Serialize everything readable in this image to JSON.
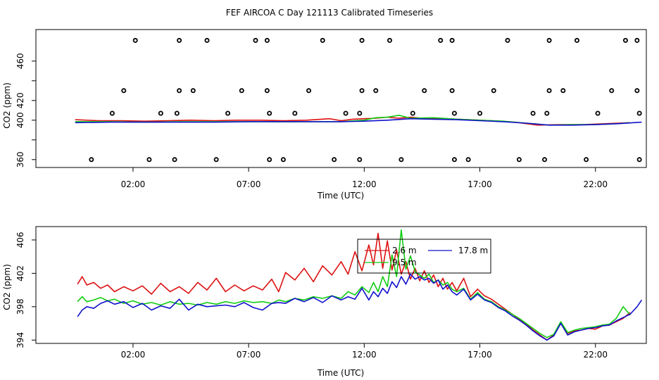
{
  "title": "FEF AIRCOA C  Day 121113  Calibrated Timeseries",
  "colors": {
    "red": "#dd1111",
    "green": "#11cc11",
    "blue": "#1111cc",
    "black": "#000000"
  },
  "chart_data": [
    {
      "id": "top",
      "type": "line",
      "xlabel": "Time (UTC)",
      "ylabel": "CO2 (ppm)",
      "xlim": [
        -2.2,
        24.2
      ],
      "ylim": [
        352,
        492
      ],
      "x_ticks": [
        2,
        7,
        12,
        17,
        22
      ],
      "x_tick_labels": [
        "02:00",
        "07:00",
        "12:00",
        "17:00",
        "22:00"
      ],
      "y_ticks": [
        360,
        380,
        400,
        420,
        440,
        460
      ],
      "y_tick_labels": [
        "360",
        "",
        "400",
        "420",
        "",
        "460"
      ],
      "series": [
        {
          "name": "2.6 m",
          "color": "#dd1111",
          "x": [
            -0.5,
            0.5,
            1.5,
            2.5,
            3.5,
            4.5,
            5.5,
            6.5,
            7.5,
            8.5,
            9.5,
            10.5,
            11.0,
            11.5,
            12.0,
            12.5,
            13.0,
            13.5,
            14.0,
            14.5,
            15.5,
            16.5,
            17.5,
            18.5,
            19.5,
            20.5,
            21.5,
            22.5,
            23.5
          ],
          "y": [
            400.5,
            399.5,
            399.5,
            399.0,
            399.5,
            400.0,
            399.5,
            400.0,
            400.0,
            399.5,
            400.0,
            401.5,
            399.5,
            401.0,
            401.5,
            402.0,
            403.0,
            402.0,
            403.0,
            402.0,
            401.5,
            400.5,
            399.5,
            398.0,
            395.0,
            395.5,
            395.5,
            396.5,
            397.5
          ]
        },
        {
          "name": "9.5 m",
          "color": "#11cc11",
          "x": [
            -0.5,
            1.0,
            2.5,
            4.0,
            5.5,
            7.0,
            8.5,
            10.0,
            11.0,
            12.0,
            12.5,
            13.0,
            13.5,
            14.0,
            15.0,
            16.0,
            17.0,
            18.0,
            19.0,
            20.0,
            21.0,
            22.0,
            23.0,
            23.5
          ],
          "y": [
            398.5,
            398.5,
            398.0,
            398.5,
            398.5,
            398.5,
            398.5,
            398.5,
            398.5,
            400.0,
            402.5,
            403.0,
            405.0,
            402.0,
            402.5,
            401.0,
            400.0,
            399.0,
            397.0,
            395.0,
            395.5,
            395.5,
            396.5,
            397.5
          ]
        },
        {
          "name": "17.8 m",
          "color": "#1111cc",
          "x": [
            -0.5,
            1.0,
            2.5,
            4.0,
            5.5,
            7.0,
            8.5,
            10.0,
            11.0,
            12.0,
            13.0,
            14.0,
            15.0,
            16.0,
            17.0,
            18.0,
            19.0,
            20.0,
            21.0,
            22.0,
            23.0,
            24.0
          ],
          "y": [
            397.5,
            398.0,
            398.0,
            398.0,
            398.0,
            398.5,
            398.5,
            398.5,
            398.5,
            399.0,
            400.0,
            401.5,
            401.0,
            400.5,
            399.5,
            398.5,
            397.0,
            395.0,
            395.0,
            395.5,
            396.5,
            398.0
          ]
        }
      ],
      "markers": {
        "name": "calibration points",
        "color": "#000000",
        "points": [
          [
            0.2,
            360
          ],
          [
            2.7,
            360
          ],
          [
            3.8,
            360
          ],
          [
            5.6,
            360
          ],
          [
            7.9,
            360
          ],
          [
            8.5,
            360
          ],
          [
            10.7,
            360
          ],
          [
            11.8,
            360
          ],
          [
            13.6,
            360
          ],
          [
            15.9,
            360
          ],
          [
            16.5,
            360
          ],
          [
            18.7,
            360
          ],
          [
            19.8,
            360
          ],
          [
            21.6,
            360
          ],
          [
            23.9,
            360
          ],
          [
            1.1,
            407
          ],
          [
            3.2,
            407
          ],
          [
            3.9,
            407
          ],
          [
            6.1,
            407
          ],
          [
            7.9,
            407
          ],
          [
            9.0,
            407
          ],
          [
            11.2,
            407
          ],
          [
            11.8,
            407
          ],
          [
            14.1,
            407
          ],
          [
            15.9,
            407
          ],
          [
            17.0,
            407
          ],
          [
            19.3,
            407
          ],
          [
            19.9,
            407
          ],
          [
            22.1,
            407
          ],
          [
            23.9,
            407
          ],
          [
            1.6,
            430
          ],
          [
            4.0,
            430
          ],
          [
            4.6,
            430
          ],
          [
            6.7,
            430
          ],
          [
            7.8,
            430
          ],
          [
            9.6,
            430
          ],
          [
            11.9,
            430
          ],
          [
            12.5,
            430
          ],
          [
            14.6,
            430
          ],
          [
            15.8,
            430
          ],
          [
            17.6,
            430
          ],
          [
            20.0,
            430
          ],
          [
            20.6,
            430
          ],
          [
            22.7,
            430
          ],
          [
            23.8,
            430
          ],
          [
            2.1,
            481
          ],
          [
            4.0,
            481
          ],
          [
            5.2,
            481
          ],
          [
            7.3,
            481
          ],
          [
            7.8,
            481
          ],
          [
            10.2,
            481
          ],
          [
            11.9,
            481
          ],
          [
            13.1,
            481
          ],
          [
            15.3,
            481
          ],
          [
            15.8,
            481
          ],
          [
            18.2,
            481
          ],
          [
            20.0,
            481
          ],
          [
            21.2,
            481
          ],
          [
            23.3,
            481
          ],
          [
            23.8,
            481
          ]
        ]
      }
    },
    {
      "id": "bottom",
      "type": "line",
      "xlabel": "Time (UTC)",
      "ylabel": "CO2 (ppm)",
      "xlim": [
        -2.2,
        24.2
      ],
      "ylim": [
        393.6,
        407.6
      ],
      "x_ticks": [
        2,
        7,
        12,
        17,
        22
      ],
      "x_tick_labels": [
        "02:00",
        "07:00",
        "12:00",
        "17:00",
        "22:00"
      ],
      "y_ticks": [
        394,
        398,
        402,
        406
      ],
      "y_tick_labels": [
        "394",
        "398",
        "402",
        "406"
      ],
      "series": [
        {
          "name": "2.6 m",
          "color": "#dd1111",
          "x": [
            -0.4,
            -0.2,
            0.0,
            0.3,
            0.6,
            0.9,
            1.2,
            1.6,
            2.0,
            2.4,
            2.8,
            3.2,
            3.6,
            4.0,
            4.4,
            4.8,
            5.2,
            5.6,
            6.0,
            6.4,
            6.8,
            7.2,
            7.6,
            8.0,
            8.3,
            8.6,
            9.0,
            9.4,
            9.8,
            10.2,
            10.6,
            11.0,
            11.3,
            11.6,
            11.9,
            12.2,
            12.4,
            12.6,
            12.8,
            13.0,
            13.2,
            13.4,
            13.6,
            13.8,
            14.0,
            14.2,
            14.4,
            14.6,
            14.8,
            15.0,
            15.2,
            15.4,
            15.6,
            15.8,
            16.0,
            16.3,
            16.6,
            16.9,
            17.2,
            17.5,
            17.8,
            18.1,
            18.4,
            18.7,
            19.0,
            19.3,
            19.6,
            19.9,
            20.2,
            20.5,
            20.8,
            21.1,
            21.4,
            21.7,
            22.0,
            22.3,
            22.6,
            22.9,
            23.2,
            23.5
          ],
          "y": [
            400.7,
            401.6,
            400.6,
            400.9,
            400.2,
            400.6,
            399.8,
            400.4,
            399.9,
            400.5,
            399.5,
            400.8,
            399.8,
            400.4,
            399.6,
            400.9,
            400.0,
            401.4,
            399.8,
            400.6,
            399.9,
            400.5,
            400.0,
            401.3,
            399.8,
            402.1,
            401.2,
            402.6,
            401.0,
            402.9,
            401.8,
            403.4,
            401.9,
            404.6,
            402.3,
            405.4,
            403.0,
            406.8,
            402.6,
            405.9,
            402.4,
            404.8,
            401.9,
            403.4,
            401.3,
            402.6,
            401.1,
            402.3,
            400.9,
            401.8,
            400.4,
            401.4,
            400.1,
            400.9,
            399.9,
            401.4,
            399.2,
            400.1,
            399.3,
            398.9,
            398.3,
            397.7,
            397.1,
            396.5,
            395.9,
            395.2,
            394.6,
            394.0,
            394.6,
            396.0,
            394.8,
            395.1,
            395.2,
            395.4,
            395.3,
            395.7,
            395.8,
            396.2,
            396.6,
            397.3
          ]
        },
        {
          "name": "9.5 m",
          "color": "#11cc11",
          "x": [
            -0.4,
            -0.2,
            0.0,
            0.3,
            0.6,
            0.9,
            1.2,
            1.6,
            2.0,
            2.4,
            2.8,
            3.2,
            3.6,
            4.0,
            4.4,
            4.8,
            5.2,
            5.6,
            6.0,
            6.4,
            6.8,
            7.2,
            7.6,
            8.0,
            8.3,
            8.6,
            9.0,
            9.4,
            9.8,
            10.2,
            10.6,
            11.0,
            11.3,
            11.6,
            11.9,
            12.2,
            12.4,
            12.6,
            12.8,
            13.0,
            13.2,
            13.4,
            13.6,
            13.8,
            14.0,
            14.2,
            14.4,
            14.6,
            14.8,
            15.0,
            15.2,
            15.4,
            15.6,
            15.8,
            16.0,
            16.3,
            16.6,
            16.9,
            17.2,
            17.5,
            17.8,
            18.1,
            18.4,
            18.7,
            19.0,
            19.3,
            19.6,
            19.9,
            20.2,
            20.5,
            20.8,
            21.1,
            21.4,
            21.7,
            22.0,
            22.3,
            22.6,
            22.9,
            23.2,
            23.5
          ],
          "y": [
            398.6,
            399.2,
            398.6,
            398.8,
            399.1,
            398.7,
            398.9,
            398.4,
            398.7,
            398.3,
            398.5,
            398.2,
            398.6,
            398.3,
            398.4,
            398.2,
            398.5,
            398.3,
            398.6,
            398.4,
            398.7,
            398.5,
            398.6,
            398.4,
            398.8,
            398.6,
            399.0,
            398.8,
            399.2,
            399.0,
            399.3,
            399.0,
            399.8,
            399.4,
            400.4,
            399.7,
            400.9,
            399.8,
            401.6,
            400.4,
            404.2,
            401.6,
            407.2,
            402.5,
            404.1,
            402.2,
            401.8,
            401.4,
            401.9,
            400.9,
            401.2,
            400.6,
            400.9,
            400.1,
            399.8,
            400.2,
            398.9,
            399.7,
            398.9,
            398.6,
            398.0,
            397.6,
            397.1,
            396.6,
            396.0,
            395.4,
            394.8,
            394.3,
            394.7,
            396.2,
            394.9,
            395.2,
            395.4,
            395.5,
            395.6,
            395.8,
            395.9,
            396.6,
            398.0,
            397.0
          ]
        },
        {
          "name": "17.8 m",
          "color": "#1111cc",
          "x": [
            -0.4,
            -0.2,
            0.0,
            0.3,
            0.6,
            0.9,
            1.2,
            1.6,
            2.0,
            2.4,
            2.8,
            3.2,
            3.6,
            4.0,
            4.4,
            4.8,
            5.2,
            5.6,
            6.0,
            6.4,
            6.8,
            7.2,
            7.6,
            8.0,
            8.3,
            8.6,
            9.0,
            9.4,
            9.8,
            10.2,
            10.6,
            11.0,
            11.3,
            11.6,
            11.9,
            12.2,
            12.4,
            12.6,
            12.8,
            13.0,
            13.2,
            13.4,
            13.6,
            13.8,
            14.0,
            14.2,
            14.4,
            14.6,
            14.8,
            15.0,
            15.2,
            15.4,
            15.6,
            15.8,
            16.0,
            16.3,
            16.6,
            16.9,
            17.2,
            17.5,
            17.8,
            18.1,
            18.4,
            18.7,
            19.0,
            19.3,
            19.6,
            19.9,
            20.2,
            20.5,
            20.8,
            21.1,
            21.4,
            21.7,
            22.0,
            22.3,
            22.6,
            22.9,
            23.2,
            23.5,
            23.8,
            24.0
          ],
          "y": [
            396.8,
            397.6,
            398.0,
            397.8,
            398.4,
            398.7,
            398.3,
            398.6,
            397.9,
            398.4,
            397.6,
            398.1,
            397.8,
            398.9,
            397.6,
            398.3,
            398.0,
            398.1,
            398.2,
            398.0,
            398.5,
            397.9,
            397.6,
            398.4,
            398.5,
            398.4,
            399.0,
            398.6,
            399.1,
            398.5,
            399.3,
            398.8,
            399.2,
            398.9,
            400.2,
            398.8,
            399.8,
            399.2,
            400.2,
            399.6,
            401.0,
            400.3,
            401.6,
            400.7,
            401.9,
            401.3,
            401.6,
            401.2,
            401.4,
            400.8,
            401.2,
            400.1,
            400.6,
            399.8,
            399.4,
            400.1,
            398.8,
            399.5,
            398.8,
            398.5,
            397.9,
            397.5,
            396.9,
            396.4,
            395.8,
            395.1,
            394.5,
            394.0,
            394.5,
            396.0,
            394.6,
            395.0,
            395.2,
            395.4,
            395.5,
            395.7,
            395.8,
            396.3,
            396.7,
            397.1,
            398.0,
            398.8
          ]
        }
      ],
      "legend": {
        "placement": "top-center",
        "entries": [
          {
            "label": "2.6 m",
            "color": "#dd1111"
          },
          {
            "label": "17.8 m",
            "color": "#1111cc"
          },
          {
            "label": "9.5 m",
            "color": "#11cc11"
          }
        ]
      }
    }
  ]
}
